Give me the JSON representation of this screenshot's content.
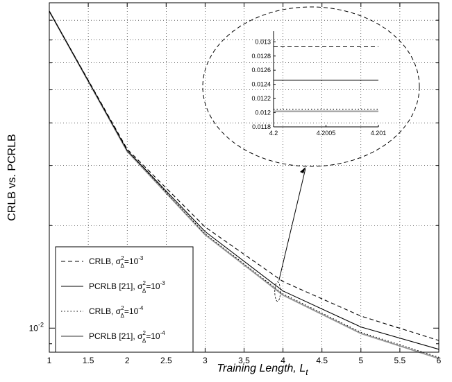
{
  "chart_data": {
    "type": "line",
    "title": "",
    "xlabel": "Training Length, L",
    "xlabel_subscript": "t",
    "ylabel": "CRLB vs. PCRLB",
    "yscale": "log",
    "xlim": [
      1,
      6
    ],
    "ylim": [
      0.0085,
      0.09
    ],
    "xticks": [
      "1",
      "1.5",
      "2",
      "2.5",
      "3",
      "3.5",
      "4",
      "4.5",
      "5",
      "5.5",
      "6"
    ],
    "yticks_labeled": [
      {
        "value": 0.01,
        "base": "10",
        "exp": "-2"
      }
    ],
    "grid": true,
    "legend_position": "lower-left",
    "x": [
      1,
      2,
      3,
      4,
      5,
      6
    ],
    "series": [
      {
        "name": "CRLB, σ²Δ=10⁻³",
        "legend_base": "CRLB, σ",
        "legend_sup": "2",
        "legend_sub": "Δ",
        "legend_tail": "=10",
        "legend_exp": "-3",
        "style": "dashed",
        "color": "#000000",
        "values": [
          0.085,
          0.0335,
          0.0198,
          0.0137,
          0.01085,
          0.0092
        ]
      },
      {
        "name": "PCRLB [21], σ²Δ=10⁻³",
        "legend_base": "PCRLB [21], σ",
        "legend_sup": "2",
        "legend_sub": "Δ",
        "legend_tail": "=10",
        "legend_exp": "-3",
        "style": "solid",
        "color": "#000000",
        "values": [
          0.085,
          0.0332,
          0.0192,
          0.01285,
          0.01008,
          0.00867
        ]
      },
      {
        "name": "CRLB, σ²Δ=10⁻⁴",
        "legend_base": "CRLB, σ",
        "legend_sup": "2",
        "legend_sub": "Δ",
        "legend_tail": "=10",
        "legend_exp": "-4",
        "style": "dotted",
        "color": "#000000",
        "values": [
          0.085,
          0.0331,
          0.0189,
          0.0126,
          0.00972,
          0.00822
        ]
      },
      {
        "name": "PCRLB [21], σ²Δ=10⁻⁴",
        "legend_base": "PCRLB [21], σ",
        "legend_sup": "2",
        "legend_sub": "Δ",
        "legend_tail": "=10",
        "legend_exp": "-4",
        "style": "solid",
        "color": "#999999",
        "values": [
          0.085,
          0.033,
          0.0188,
          0.0125,
          0.00965,
          0.00815
        ]
      }
    ],
    "inset": {
      "xlim": [
        4.2,
        4.201
      ],
      "ylim": [
        0.0118,
        0.01315
      ],
      "xticks": [
        "4.2",
        "4.2005",
        "4.201"
      ],
      "yticks": [
        "0.0118",
        "0.012",
        "0.0122",
        "0.0124",
        "0.0126",
        "0.0128",
        "0.013"
      ],
      "values": [
        0.01293,
        0.01246,
        0.01205,
        0.01202
      ]
    }
  }
}
